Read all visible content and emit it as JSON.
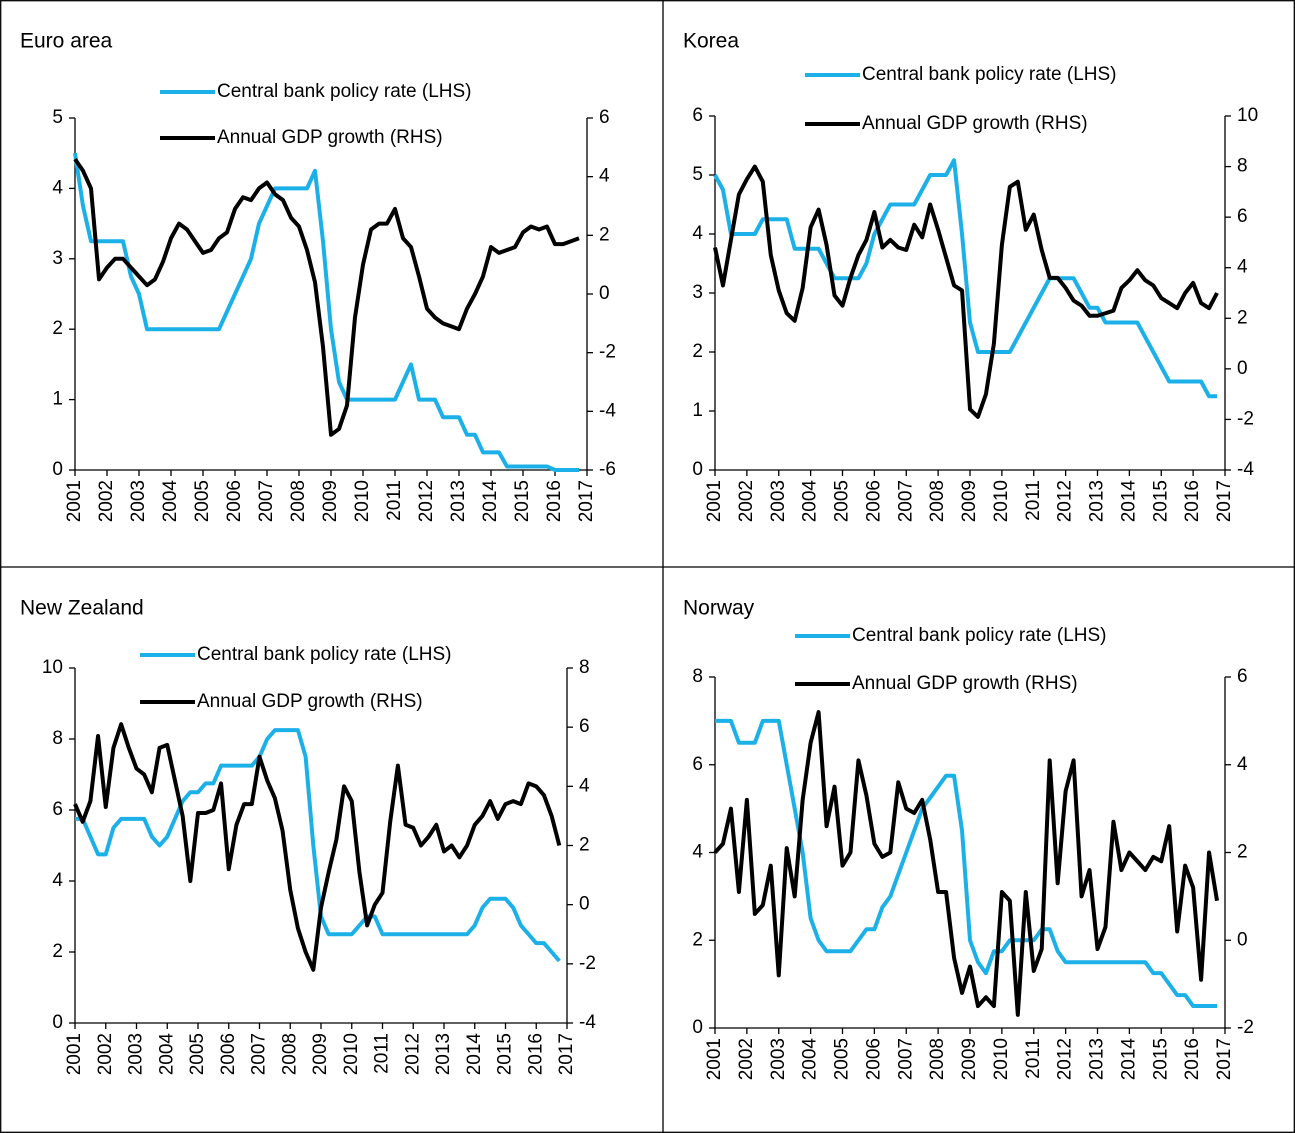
{
  "chart_data": [
    {
      "type": "line",
      "title": "Euro area",
      "x": [
        2001,
        2001.25,
        2001.5,
        2001.75,
        2002,
        2002.25,
        2002.5,
        2002.75,
        2003,
        2003.25,
        2003.5,
        2003.75,
        2004,
        2004.25,
        2004.5,
        2004.75,
        2005,
        2005.25,
        2005.5,
        2005.75,
        2006,
        2006.25,
        2006.5,
        2006.75,
        2007,
        2007.25,
        2007.5,
        2007.75,
        2008,
        2008.25,
        2008.5,
        2008.75,
        2009,
        2009.25,
        2009.5,
        2009.75,
        2010,
        2010.25,
        2010.5,
        2010.75,
        2011,
        2011.25,
        2011.5,
        2011.75,
        2012,
        2012.25,
        2012.5,
        2012.75,
        2013,
        2013.25,
        2013.5,
        2013.75,
        2014,
        2014.25,
        2014.5,
        2014.75,
        2015,
        2015.25,
        2015.5,
        2015.75,
        2016,
        2016.25,
        2016.5,
        2016.75
      ],
      "xlim": [
        2001,
        2017
      ],
      "xticks": [
        2001,
        2002,
        2003,
        2004,
        2005,
        2006,
        2007,
        2008,
        2009,
        2010,
        2011,
        2012,
        2013,
        2014,
        2015,
        2016,
        2017
      ],
      "ylim": [
        0,
        5
      ],
      "yticks": [
        0,
        1,
        2,
        3,
        4,
        5
      ],
      "y2lim": [
        -6,
        6
      ],
      "y2ticks": [
        -6,
        -4,
        -2,
        0,
        2,
        4,
        6
      ],
      "series": [
        {
          "name": "Central bank policy rate (LHS)",
          "color": "#1cb0e8",
          "values": [
            4.5,
            3.75,
            3.25,
            3.25,
            3.25,
            3.25,
            3.25,
            2.75,
            2.5,
            2,
            2,
            2,
            2,
            2,
            2,
            2,
            2,
            2,
            2,
            2.25,
            2.5,
            2.75,
            3,
            3.5,
            3.75,
            4,
            4,
            4,
            4,
            4,
            4.25,
            3.25,
            2,
            1.25,
            1,
            1,
            1,
            1,
            1,
            1,
            1,
            1.25,
            1.5,
            1,
            1,
            1,
            0.75,
            0.75,
            0.75,
            0.5,
            0.5,
            0.25,
            0.25,
            0.25,
            0.05,
            0.05,
            0.05,
            0.05,
            0.05,
            0.05,
            0,
            0,
            0,
            0
          ]
        },
        {
          "name": "Annual GDP growth (RHS)",
          "color": "#000000",
          "axis": "y2",
          "values": [
            4.6,
            4.2,
            3.6,
            0.5,
            0.9,
            1.2,
            1.2,
            0.9,
            0.6,
            0.3,
            0.5,
            1.1,
            1.9,
            2.4,
            2.2,
            1.8,
            1.4,
            1.5,
            1.9,
            2.1,
            2.9,
            3.3,
            3.2,
            3.6,
            3.8,
            3.4,
            3.2,
            2.6,
            2.3,
            1.5,
            0.4,
            -1.8,
            -4.8,
            -4.6,
            -3.8,
            -0.8,
            1,
            2.2,
            2.4,
            2.4,
            2.9,
            1.9,
            1.6,
            0.6,
            -0.5,
            -0.8,
            -1,
            -1.1,
            -1.2,
            -0.5,
            0,
            0.6,
            1.6,
            1.4,
            1.5,
            1.6,
            2.1,
            2.3,
            2.2,
            2.3,
            1.7,
            1.7,
            1.8,
            1.9
          ]
        }
      ]
    },
    {
      "type": "line",
      "title": "Korea",
      "x": [
        2001,
        2001.25,
        2001.5,
        2001.75,
        2002,
        2002.25,
        2002.5,
        2002.75,
        2003,
        2003.25,
        2003.5,
        2003.75,
        2004,
        2004.25,
        2004.5,
        2004.75,
        2005,
        2005.25,
        2005.5,
        2005.75,
        2006,
        2006.25,
        2006.5,
        2006.75,
        2007,
        2007.25,
        2007.5,
        2007.75,
        2008,
        2008.25,
        2008.5,
        2008.75,
        2009,
        2009.25,
        2009.5,
        2009.75,
        2010,
        2010.25,
        2010.5,
        2010.75,
        2011,
        2011.25,
        2011.5,
        2011.75,
        2012,
        2012.25,
        2012.5,
        2012.75,
        2013,
        2013.25,
        2013.5,
        2013.75,
        2014,
        2014.25,
        2014.5,
        2014.75,
        2015,
        2015.25,
        2015.5,
        2015.75,
        2016,
        2016.25,
        2016.5,
        2016.75
      ],
      "xlim": [
        2001,
        2017
      ],
      "xticks": [
        2001,
        2002,
        2003,
        2004,
        2005,
        2006,
        2007,
        2008,
        2009,
        2010,
        2011,
        2012,
        2013,
        2014,
        2015,
        2016,
        2017
      ],
      "ylim": [
        0,
        6
      ],
      "yticks": [
        0,
        1,
        2,
        3,
        4,
        5,
        6
      ],
      "y2lim": [
        -4,
        10
      ],
      "y2ticks": [
        -4,
        -2,
        0,
        2,
        4,
        6,
        8,
        10
      ],
      "series": [
        {
          "name": "Central bank policy rate (LHS)",
          "color": "#1cb0e8",
          "values": [
            5,
            4.75,
            4,
            4,
            4,
            4,
            4.25,
            4.25,
            4.25,
            4.25,
            3.75,
            3.75,
            3.75,
            3.75,
            3.5,
            3.25,
            3.25,
            3.25,
            3.25,
            3.5,
            4,
            4.25,
            4.5,
            4.5,
            4.5,
            4.5,
            4.75,
            5,
            5,
            5,
            5.25,
            4,
            2.5,
            2,
            2,
            2,
            2,
            2,
            2.25,
            2.5,
            2.75,
            3,
            3.25,
            3.25,
            3.25,
            3.25,
            3,
            2.75,
            2.75,
            2.5,
            2.5,
            2.5,
            2.5,
            2.5,
            2.25,
            2,
            1.75,
            1.5,
            1.5,
            1.5,
            1.5,
            1.5,
            1.25,
            1.25
          ]
        },
        {
          "name": "Annual GDP growth (RHS)",
          "color": "#000000",
          "axis": "y2",
          "values": [
            4.8,
            3.3,
            5.1,
            6.9,
            7.5,
            8,
            7.4,
            4.5,
            3.1,
            2.2,
            1.9,
            3.2,
            5.6,
            6.3,
            4.9,
            2.9,
            2.5,
            3.6,
            4.5,
            5.1,
            6.2,
            4.8,
            5.1,
            4.8,
            4.7,
            5.7,
            5.2,
            6.5,
            5.5,
            4.4,
            3.3,
            3.1,
            -1.6,
            -1.9,
            -1,
            1,
            4.9,
            7.2,
            7.4,
            5.5,
            6.1,
            4.7,
            3.6,
            3.6,
            3.2,
            2.7,
            2.5,
            2.1,
            2.1,
            2.2,
            2.3,
            3.2,
            3.5,
            3.9,
            3.5,
            3.3,
            2.8,
            2.6,
            2.4,
            3,
            3.4,
            2.6,
            2.4,
            3
          ]
        }
      ]
    },
    {
      "type": "line",
      "title": "New Zealand",
      "x": [
        2001,
        2001.25,
        2001.5,
        2001.75,
        2002,
        2002.25,
        2002.5,
        2002.75,
        2003,
        2003.25,
        2003.5,
        2003.75,
        2004,
        2004.25,
        2004.5,
        2004.75,
        2005,
        2005.25,
        2005.5,
        2005.75,
        2006,
        2006.25,
        2006.5,
        2006.75,
        2007,
        2007.25,
        2007.5,
        2007.75,
        2008,
        2008.25,
        2008.5,
        2008.75,
        2009,
        2009.25,
        2009.5,
        2009.75,
        2010,
        2010.25,
        2010.5,
        2010.75,
        2011,
        2011.25,
        2011.5,
        2011.75,
        2012,
        2012.25,
        2012.5,
        2012.75,
        2013,
        2013.25,
        2013.5,
        2013.75,
        2014,
        2014.25,
        2014.5,
        2014.75,
        2015,
        2015.25,
        2015.5,
        2015.75,
        2016,
        2016.25,
        2016.5,
        2016.75
      ],
      "xlim": [
        2001,
        2017
      ],
      "xticks": [
        2001,
        2002,
        2003,
        2004,
        2005,
        2006,
        2007,
        2008,
        2009,
        2010,
        2011,
        2012,
        2013,
        2014,
        2015,
        2016,
        2017
      ],
      "ylim": [
        0,
        10
      ],
      "yticks": [
        0,
        2,
        4,
        6,
        8,
        10
      ],
      "y2lim": [
        -4,
        8
      ],
      "y2ticks": [
        -4,
        -2,
        0,
        2,
        4,
        6,
        8
      ],
      "series": [
        {
          "name": "Central bank policy rate (LHS)",
          "color": "#1cb0e8",
          "values": [
            5.75,
            5.75,
            5.25,
            4.75,
            4.75,
            5.5,
            5.75,
            5.75,
            5.75,
            5.75,
            5.25,
            5,
            5.25,
            5.75,
            6.25,
            6.5,
            6.5,
            6.75,
            6.75,
            7.25,
            7.25,
            7.25,
            7.25,
            7.25,
            7.5,
            8,
            8.25,
            8.25,
            8.25,
            8.25,
            7.5,
            5,
            3,
            2.5,
            2.5,
            2.5,
            2.5,
            2.75,
            3,
            3,
            2.5,
            2.5,
            2.5,
            2.5,
            2.5,
            2.5,
            2.5,
            2.5,
            2.5,
            2.5,
            2.5,
            2.5,
            2.75,
            3.25,
            3.5,
            3.5,
            3.5,
            3.25,
            2.75,
            2.5,
            2.25,
            2.25,
            2,
            1.75
          ]
        },
        {
          "name": "Annual GDP growth (RHS)",
          "color": "#000000",
          "axis": "y2",
          "values": [
            3.4,
            2.8,
            3.5,
            5.7,
            3.3,
            5.3,
            6.1,
            5.3,
            4.6,
            4.4,
            3.8,
            5.3,
            5.4,
            4.2,
            3,
            0.8,
            3.1,
            3.1,
            3.2,
            4.1,
            1.2,
            2.7,
            3.4,
            3.4,
            5,
            4.2,
            3.6,
            2.5,
            0.5,
            -0.8,
            -1.6,
            -2.2,
            -0.1,
            1.1,
            2.2,
            4,
            3.5,
            1.1,
            -0.7,
            0,
            0.4,
            2.8,
            4.7,
            2.7,
            2.6,
            2,
            2.3,
            2.7,
            1.8,
            2,
            1.6,
            2,
            2.7,
            3,
            3.5,
            2.9,
            3.4,
            3.5,
            3.4,
            4.1,
            4,
            3.7,
            3,
            2
          ]
        }
      ]
    },
    {
      "type": "line",
      "title": "Norway",
      "x": [
        2001,
        2001.25,
        2001.5,
        2001.75,
        2002,
        2002.25,
        2002.5,
        2002.75,
        2003,
        2003.25,
        2003.5,
        2003.75,
        2004,
        2004.25,
        2004.5,
        2004.75,
        2005,
        2005.25,
        2005.5,
        2005.75,
        2006,
        2006.25,
        2006.5,
        2006.75,
        2007,
        2007.25,
        2007.5,
        2007.75,
        2008,
        2008.25,
        2008.5,
        2008.75,
        2009,
        2009.25,
        2009.5,
        2009.75,
        2010,
        2010.25,
        2010.5,
        2010.75,
        2011,
        2011.25,
        2011.5,
        2011.75,
        2012,
        2012.25,
        2012.5,
        2012.75,
        2013,
        2013.25,
        2013.5,
        2013.75,
        2014,
        2014.25,
        2014.5,
        2014.75,
        2015,
        2015.25,
        2015.5,
        2015.75,
        2016,
        2016.25,
        2016.5,
        2016.75
      ],
      "xlim": [
        2001,
        2017
      ],
      "xticks": [
        2001,
        2002,
        2003,
        2004,
        2005,
        2006,
        2007,
        2008,
        2009,
        2010,
        2011,
        2012,
        2013,
        2014,
        2015,
        2016,
        2017
      ],
      "ylim": [
        0,
        8
      ],
      "yticks": [
        0,
        2,
        4,
        6,
        8
      ],
      "y2lim": [
        -2,
        6
      ],
      "y2ticks": [
        -2,
        0,
        2,
        4,
        6
      ],
      "series": [
        {
          "name": "Central bank policy rate (LHS)",
          "color": "#1cb0e8",
          "values": [
            7,
            7,
            7,
            6.5,
            6.5,
            6.5,
            7,
            7,
            7,
            6,
            5,
            4,
            2.5,
            2,
            1.75,
            1.75,
            1.75,
            1.75,
            2,
            2.25,
            2.25,
            2.75,
            3,
            3.5,
            4,
            4.5,
            5,
            5.25,
            5.5,
            5.75,
            5.75,
            4.5,
            2,
            1.5,
            1.25,
            1.75,
            1.75,
            2,
            2,
            2,
            2,
            2.25,
            2.25,
            1.75,
            1.5,
            1.5,
            1.5,
            1.5,
            1.5,
            1.5,
            1.5,
            1.5,
            1.5,
            1.5,
            1.5,
            1.25,
            1.25,
            1,
            0.75,
            0.75,
            0.5,
            0.5,
            0.5,
            0.5
          ]
        },
        {
          "name": "Annual GDP growth (RHS)",
          "color": "#000000",
          "axis": "y2",
          "values": [
            2,
            2.2,
            3,
            1.1,
            3.2,
            0.6,
            0.8,
            1.7,
            -0.8,
            2.1,
            1,
            3.2,
            4.5,
            5.2,
            2.6,
            3.5,
            1.7,
            2,
            4.1,
            3.3,
            2.2,
            1.9,
            2,
            3.6,
            3,
            2.9,
            3.2,
            2.3,
            1.1,
            1.1,
            -0.4,
            -1.2,
            -0.6,
            -1.5,
            -1.3,
            -1.5,
            1.1,
            0.9,
            -1.7,
            1.1,
            -0.7,
            -0.2,
            4.1,
            1.3,
            3.4,
            4.1,
            1,
            1.6,
            -0.2,
            0.3,
            2.7,
            1.6,
            2,
            1.8,
            1.6,
            1.9,
            1.8,
            2.6,
            0.2,
            1.7,
            1.2,
            -0.9,
            2,
            0.9
          ]
        }
      ]
    }
  ]
}
